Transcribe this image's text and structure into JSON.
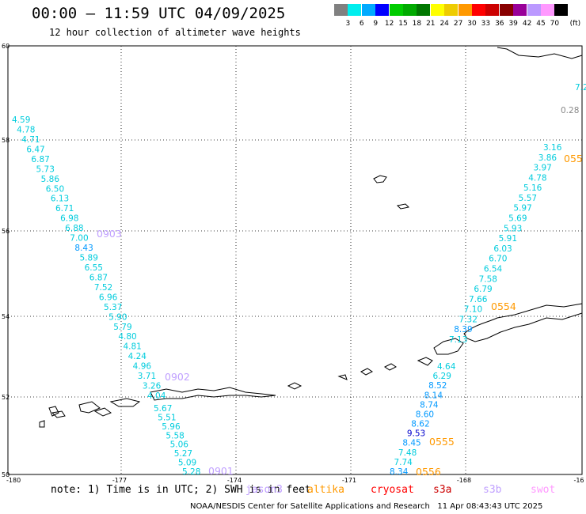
{
  "header": {
    "title": "00:00 – 11:59 UTC 04/09/2025",
    "subtitle": "12 hour collection of altimeter wave heights"
  },
  "legend": {
    "unit": "(ft)",
    "colors": [
      "#808080",
      "#00eeee",
      "#00aaff",
      "#0000ff",
      "#00cc00",
      "#00aa00",
      "#007700",
      "#ffff00",
      "#eecc00",
      "#ff9900",
      "#ff0000",
      "#cc0000",
      "#880000",
      "#990099",
      "#bb99ff",
      "#ff99ff",
      "#000000"
    ],
    "labels": [
      "3",
      "6",
      "9",
      "12",
      "15",
      "18",
      "21",
      "24",
      "27",
      "30",
      "33",
      "36",
      "39",
      "42",
      "45",
      "70"
    ]
  },
  "map": {
    "lon_labels": [
      "-180",
      "-177",
      "-174",
      "-171",
      "-168",
      "-16"
    ],
    "lat_labels": [
      "60",
      "58",
      "56",
      "54",
      "52",
      "50"
    ],
    "colors": {
      "cyan": "#00ccdd",
      "blue": "#0099ff",
      "navy": "#0000cc",
      "gray": "#888888",
      "jason": "#c0a0ff",
      "altika": "#ff9900"
    },
    "tracks": [
      {
        "pass": "0903",
        "pass_color": "#c0a0ff",
        "values": [
          "4.59",
          "4.78",
          "4.71",
          "6.47",
          "6.87",
          "5.73",
          "5.86",
          "6.50",
          "6.13",
          "6.71",
          "6.98",
          "6.88",
          "7.00",
          "8.43",
          "5.89",
          "6.55",
          "6.87",
          "7.52",
          "6.96",
          "5.37",
          "5.90",
          "5.79",
          "4.80",
          "4.81",
          "4.24",
          "4.96",
          "3.71",
          "3.26",
          "4.04"
        ]
      },
      {
        "pass": "0902",
        "pass_color": "#c0a0ff",
        "values": [
          "5.67",
          "5.51",
          "5.96",
          "5.58",
          "5.06",
          "5.27",
          "5.09",
          "5.28"
        ]
      },
      {
        "pass": "0901",
        "pass_color": "#c0a0ff",
        "values": []
      },
      {
        "pass": "0554",
        "pass_color": "#ff9900",
        "values": [
          "3.16",
          "3.86",
          "3.97",
          "4.78",
          "5.16",
          "5.57",
          "5.97",
          "5.69",
          "5.93",
          "5.91",
          "6.03",
          "6.70",
          "6.54",
          "7.58",
          "6.79",
          "7.66",
          "7.10",
          "7.32",
          "8.39",
          "7.13"
        ]
      },
      {
        "pass": "0555",
        "pass_color": "#ff9900",
        "values": [
          "4.64",
          "6.29",
          "8.52",
          "8.14",
          "8.74",
          "8.60",
          "8.62",
          "9.53",
          "8.45",
          "7.48",
          "7.74",
          "8.34"
        ]
      },
      {
        "pass": "0556",
        "pass_color": "#ff9900",
        "values": []
      },
      {
        "pass": "055",
        "pass_color": "#ff9900",
        "values": []
      }
    ],
    "corner_values": [
      "7.2",
      "0.28"
    ]
  },
  "footer": {
    "note": "note: 1) Time is in UTC; 2) SWH is in feet",
    "satellites": [
      {
        "name": "jason3",
        "color": "#c0a0ff"
      },
      {
        "name": "altika",
        "color": "#ff9900"
      },
      {
        "name": "cryosat",
        "color": "#ff0000"
      },
      {
        "name": "s3a",
        "color": "#cc0000"
      },
      {
        "name": "s3b",
        "color": "#c0a0ff"
      },
      {
        "name": "swot",
        "color": "#ff99ff"
      }
    ],
    "credit": "NOAA/NESDIS Center for Satellite Applications and Research   11 Apr 08:43:43 UTC 2025"
  }
}
